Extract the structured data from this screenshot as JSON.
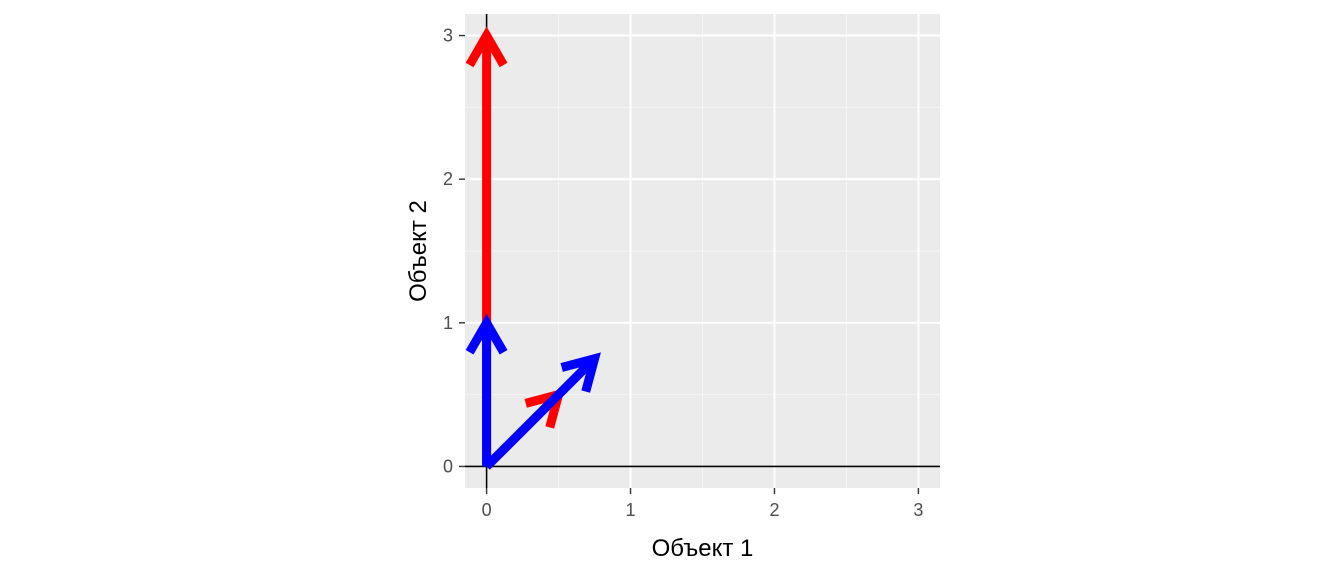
{
  "chart_data": {
    "type": "vector",
    "title": "",
    "xlabel": "Объект 1",
    "ylabel": "Объект 2",
    "xlim": [
      -0.15,
      3.15
    ],
    "ylim": [
      -0.15,
      3.15
    ],
    "x_ticks": [
      0,
      1,
      2,
      3
    ],
    "y_ticks": [
      0,
      1,
      2,
      3
    ],
    "x_tick_labels": [
      "0",
      "1",
      "2",
      "3"
    ],
    "y_tick_labels": [
      "0",
      "1",
      "2",
      "3"
    ],
    "grid": true,
    "reference_lines": [
      {
        "axis": "x",
        "value": 0
      },
      {
        "axis": "y",
        "value": 0
      }
    ],
    "series": [
      {
        "name": "red",
        "color": "#ff0000",
        "vectors": [
          {
            "x0": 0,
            "y0": 0,
            "x1": 0.5,
            "y1": 0.5
          },
          {
            "x0": 0,
            "y0": 0,
            "x1": 0,
            "y1": 3
          }
        ]
      },
      {
        "name": "blue",
        "color": "#0000ff",
        "vectors": [
          {
            "x0": 0,
            "y0": 0,
            "x1": 0.75,
            "y1": 0.75
          },
          {
            "x0": 0,
            "y0": 0,
            "x1": 0,
            "y1": 1
          }
        ]
      }
    ]
  },
  "colors": {
    "panel_background": "#ebebeb",
    "grid_major": "#ffffff",
    "grid_minor": "#f5f5f5",
    "tick_text": "#4d4d4d",
    "axis_title": "#000000"
  }
}
